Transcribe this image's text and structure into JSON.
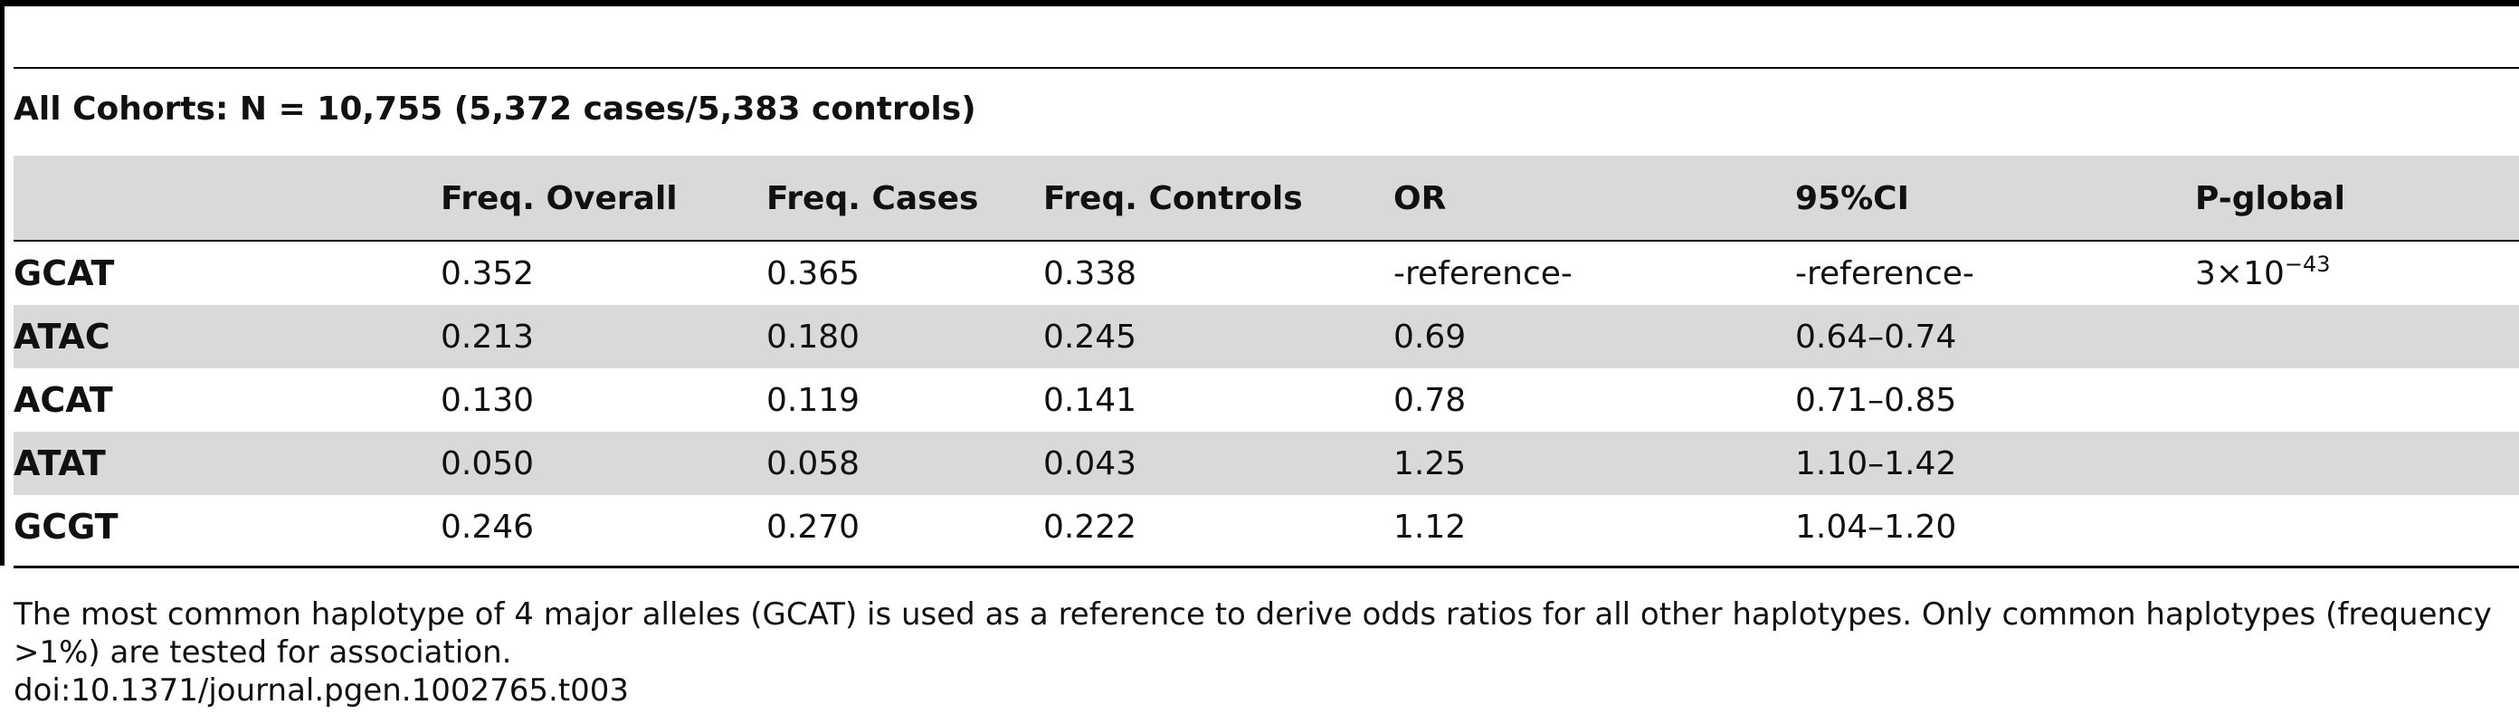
{
  "cohort_title": "All Cohorts: N = 10,755 (5,372 cases/5,383 controls)",
  "columns": [
    "",
    "Freq. Overall",
    "Freq. Cases",
    "Freq. Controls",
    "OR",
    "95%CI",
    "P-global"
  ],
  "rows": [
    [
      "GCAT",
      "0.352",
      "0.365",
      "0.338",
      "-reference-",
      "-reference-",
      ""
    ],
    [
      "ATAC",
      "0.213",
      "0.180",
      "0.245",
      "0.69",
      "0.64–0.74",
      ""
    ],
    [
      "ACAT",
      "0.130",
      "0.119",
      "0.141",
      "0.78",
      "0.71–0.85",
      ""
    ],
    [
      "ATAT",
      "0.050",
      "0.058",
      "0.043",
      "1.25",
      "1.10–1.42",
      ""
    ],
    [
      "GCGT",
      "0.246",
      "0.270",
      "0.222",
      "1.12",
      "1.04–1.20",
      ""
    ]
  ],
  "p_global": {
    "base": "3×10",
    "exponent": "−43"
  },
  "footnote": "The most common haplotype of 4 major alleles (GCAT) is used as a reference to derive odds ratios for all other haplotypes. Only common haplotypes (frequency >1%) are tested for association.",
  "doi": "doi:10.1371/journal.pgen.1002765.t003"
}
